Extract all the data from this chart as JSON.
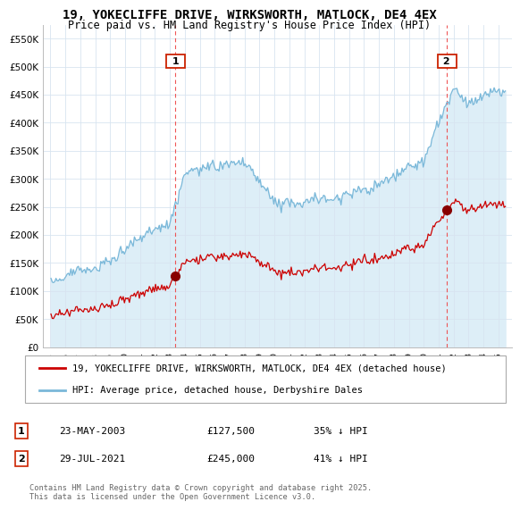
{
  "title": "19, YOKECLIFFE DRIVE, WIRKSWORTH, MATLOCK, DE4 4EX",
  "subtitle": "Price paid vs. HM Land Registry's House Price Index (HPI)",
  "legend_line1": "19, YOKECLIFFE DRIVE, WIRKSWORTH, MATLOCK, DE4 4EX (detached house)",
  "legend_line2": "HPI: Average price, detached house, Derbyshire Dales",
  "annotation1_date": "23-MAY-2003",
  "annotation1_price": "£127,500",
  "annotation1_hpi": "35% ↓ HPI",
  "annotation2_date": "29-JUL-2021",
  "annotation2_price": "£245,000",
  "annotation2_hpi": "41% ↓ HPI",
  "footer": "Contains HM Land Registry data © Crown copyright and database right 2025.\nThis data is licensed under the Open Government Licence v3.0.",
  "hpi_color": "#7ab8d9",
  "hpi_fill_color": "#ddeef7",
  "price_color": "#cc0000",
  "marker_color": "#880000",
  "vline_color": "#ee4444",
  "label_ec": "#cc2200",
  "ylim_max": 575000,
  "yticks": [
    0,
    50000,
    100000,
    150000,
    200000,
    250000,
    300000,
    350000,
    400000,
    450000,
    500000,
    550000
  ],
  "ytick_labels": [
    "£0",
    "£50K",
    "£100K",
    "£150K",
    "£200K",
    "£250K",
    "£300K",
    "£350K",
    "£400K",
    "£450K",
    "£500K",
    "£550K"
  ],
  "bg_color": "#ffffff",
  "grid_color": "#d8e4f0",
  "sale1_date_num": 2003.37,
  "sale1_price": 127500,
  "sale2_date_num": 2021.54,
  "sale2_price": 245000
}
